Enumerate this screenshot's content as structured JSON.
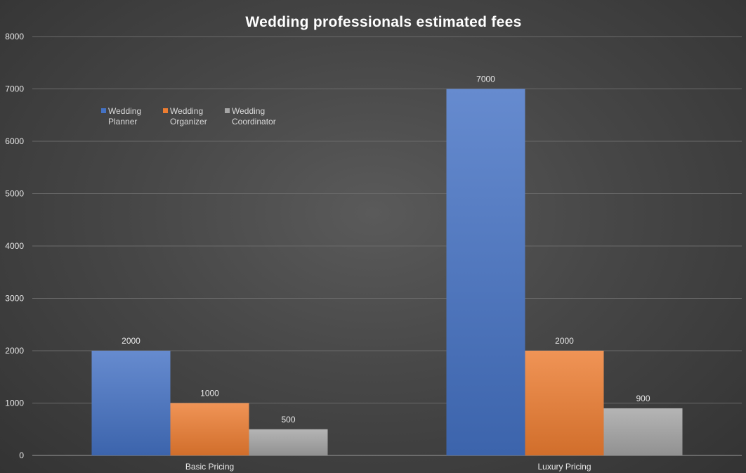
{
  "chart_data": {
    "type": "bar",
    "title": "Wedding professionals estimated fees",
    "xlabel": "",
    "ylabel": "",
    "categories": [
      "Basic Pricing",
      "Luxury Pricing"
    ],
    "series": [
      {
        "name": "Wedding Planner",
        "values": [
          2000,
          7000
        ],
        "color": "#4472c4"
      },
      {
        "name": "Wedding Organizer",
        "values": [
          1000,
          2000
        ],
        "color": "#ed7d31"
      },
      {
        "name": "Wedding Coordinator",
        "values": [
          500,
          900
        ],
        "color": "#a5a5a5"
      }
    ],
    "ylim": [
      0,
      8000
    ],
    "yticks": [
      0,
      1000,
      2000,
      3000,
      4000,
      5000,
      6000,
      7000,
      8000
    ],
    "grid": true,
    "data_labels": true,
    "legend_position": "top-left"
  }
}
